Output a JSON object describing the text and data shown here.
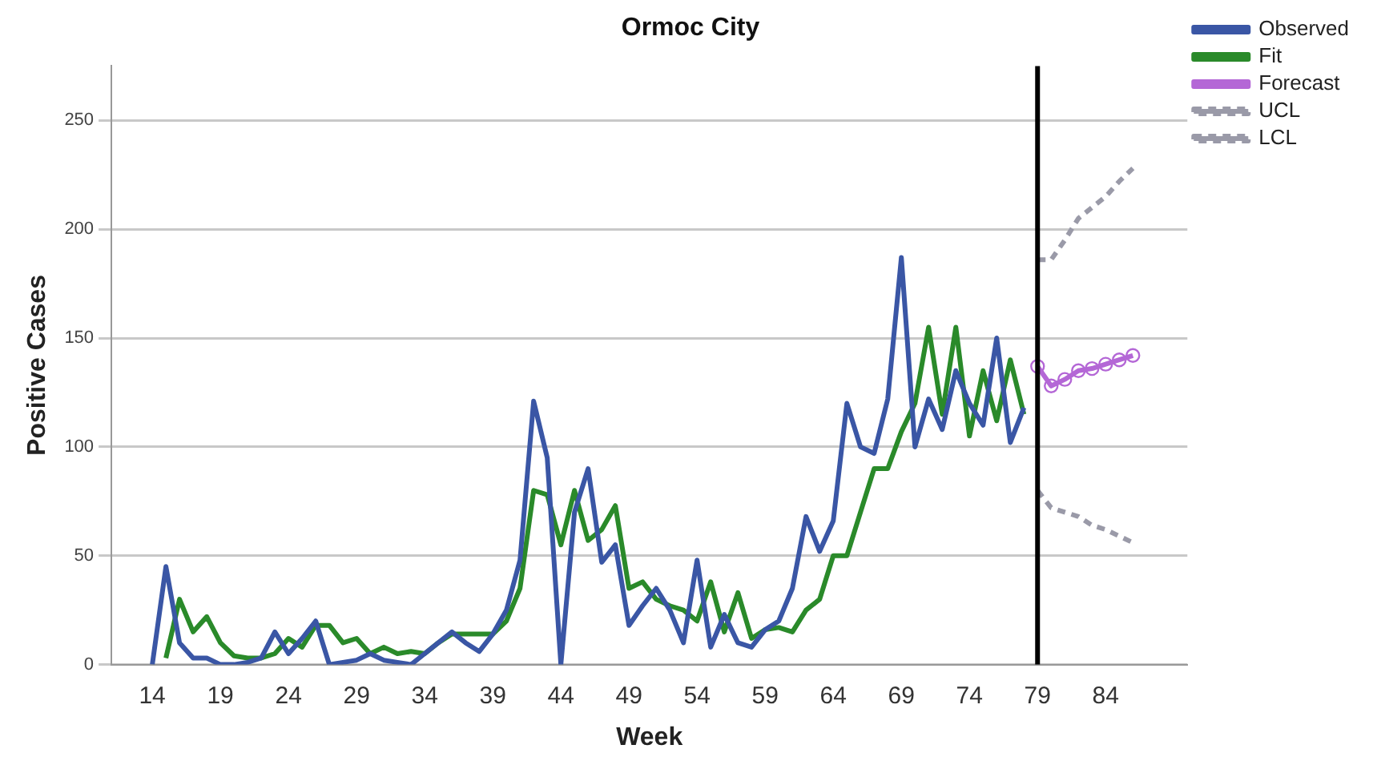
{
  "chart_data": {
    "type": "line",
    "title": "Ormoc City",
    "xlabel": "Week",
    "ylabel": "Positive Cases",
    "xlim": [
      11,
      90
    ],
    "xticks": [
      14,
      19,
      24,
      29,
      34,
      39,
      44,
      49,
      54,
      59,
      64,
      69,
      74,
      79,
      84
    ],
    "ylim": [
      0,
      275
    ],
    "yticks": [
      0,
      50,
      100,
      150,
      200,
      250
    ],
    "grid": "y",
    "legend": "top right",
    "marker": "none",
    "line_style": "solid",
    "ref_lines": [
      {
        "axis": "x",
        "value": 79,
        "color": "#000000"
      }
    ],
    "series": [
      {
        "name": "Observed",
        "color": "#3a56a5",
        "x": [
          14,
          15,
          16,
          17,
          18,
          19,
          20,
          21,
          22,
          23,
          24,
          25,
          26,
          27,
          28,
          29,
          30,
          31,
          32,
          33,
          34,
          35,
          36,
          37,
          38,
          39,
          40,
          41,
          42,
          43,
          44,
          45,
          46,
          47,
          48,
          49,
          50,
          51,
          52,
          53,
          54,
          55,
          56,
          57,
          58,
          59,
          60,
          61,
          62,
          63,
          64,
          65,
          66,
          67,
          68,
          69,
          70,
          71,
          72,
          73,
          74,
          75,
          76,
          77,
          78
        ],
        "values": [
          0,
          45,
          10,
          3,
          3,
          0,
          0,
          1,
          3,
          15,
          5,
          12,
          20,
          0,
          1,
          2,
          5,
          2,
          1,
          0,
          5,
          10,
          15,
          10,
          6,
          14,
          25,
          48,
          121,
          95,
          0,
          70,
          90,
          47,
          55,
          18,
          27,
          35,
          25,
          10,
          48,
          8,
          23,
          10,
          8,
          16,
          20,
          35,
          68,
          52,
          66,
          120,
          100,
          97,
          122,
          187,
          100,
          122,
          108,
          135,
          120,
          110,
          150,
          102,
          118
        ]
      },
      {
        "name": "Fit",
        "color": "#2a8a2a",
        "x": [
          15,
          16,
          17,
          18,
          19,
          20,
          21,
          22,
          23,
          24,
          25,
          26,
          27,
          28,
          29,
          30,
          31,
          32,
          33,
          34,
          35,
          36,
          37,
          38,
          39,
          40,
          41,
          42,
          43,
          44,
          45,
          46,
          47,
          48,
          49,
          50,
          51,
          52,
          53,
          54,
          55,
          56,
          57,
          58,
          59,
          60,
          61,
          62,
          63,
          64,
          65,
          66,
          67,
          68,
          69,
          70,
          71,
          72,
          73,
          74,
          75,
          76,
          77,
          78
        ],
        "values": [
          3,
          30,
          15,
          22,
          10,
          4,
          3,
          3,
          5,
          12,
          8,
          18,
          18,
          10,
          12,
          5,
          8,
          5,
          6,
          5,
          10,
          14,
          14,
          14,
          14,
          20,
          35,
          80,
          78,
          55,
          80,
          57,
          62,
          73,
          35,
          38,
          30,
          27,
          25,
          20,
          38,
          15,
          33,
          12,
          16,
          17,
          15,
          25,
          30,
          50,
          50,
          70,
          90,
          90,
          107,
          120,
          155,
          115,
          155,
          105,
          135,
          112,
          140,
          115
        ]
      },
      {
        "name": "Forecast",
        "color": "#b467d6",
        "marker": "circle",
        "x": [
          79,
          80,
          81,
          82,
          83,
          84,
          85,
          86
        ],
        "values": [
          137,
          128,
          131,
          135,
          136,
          138,
          140,
          142
        ]
      },
      {
        "name": "UCL",
        "color": "#9a9aa8",
        "line_style": "dashed",
        "x": [
          79,
          80,
          81,
          82,
          83,
          84,
          85,
          86
        ],
        "values": [
          186,
          186,
          195,
          205,
          210,
          215,
          222,
          228
        ]
      },
      {
        "name": "LCL",
        "color": "#9a9aa8",
        "line_style": "dashed",
        "x": [
          79,
          80,
          81,
          82,
          83,
          84,
          85,
          86
        ],
        "values": [
          80,
          72,
          70,
          68,
          64,
          62,
          59,
          56
        ]
      }
    ]
  }
}
